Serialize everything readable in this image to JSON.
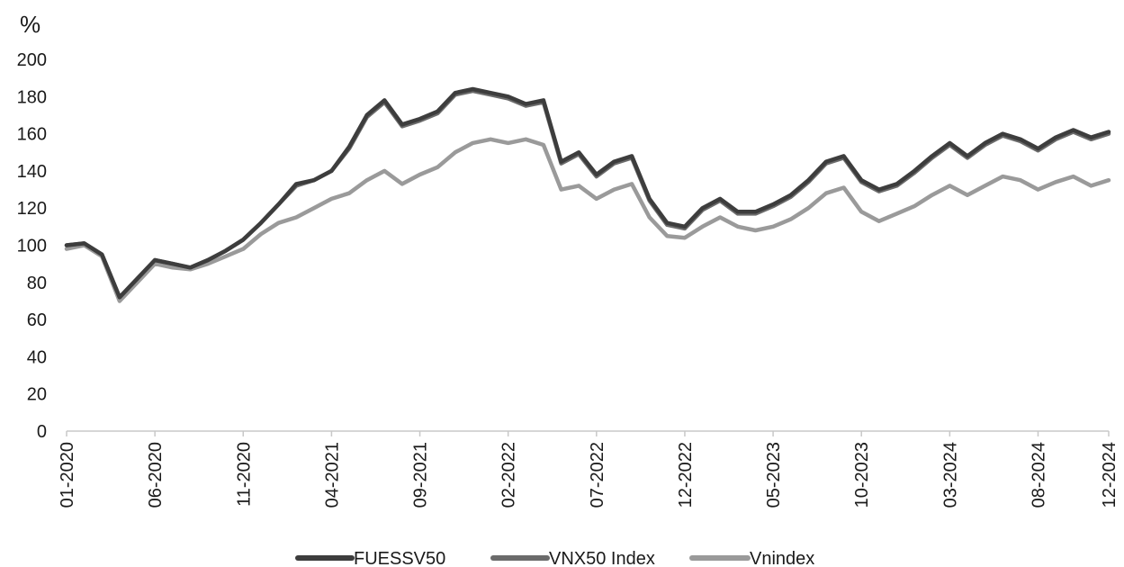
{
  "chart_data": {
    "type": "line",
    "title": "",
    "ylabel": "%",
    "xlabel": "",
    "ylim": [
      0,
      200
    ],
    "y_ticks": [
      0,
      20,
      40,
      60,
      80,
      100,
      120,
      140,
      160,
      180,
      200
    ],
    "x_ticks": [
      "01-2020",
      "06-2020",
      "11-2020",
      "04-2021",
      "09-2021",
      "02-2022",
      "07-2022",
      "12-2022",
      "05-2023",
      "10-2023",
      "03-2024",
      "08-2024",
      "12-2024"
    ],
    "grid": false,
    "legend_position": "bottom",
    "series": [
      {
        "name": "FUESSV50",
        "color": "#3d3d3d",
        "points": [
          [
            "01-2020",
            100
          ],
          [
            "02-2020",
            101
          ],
          [
            "03-2020",
            95
          ],
          [
            "04-2020",
            72
          ],
          [
            "05-2020",
            82
          ],
          [
            "06-2020",
            92
          ],
          [
            "07-2020",
            90
          ],
          [
            "08-2020",
            88
          ],
          [
            "09-2020",
            92
          ],
          [
            "10-2020",
            97
          ],
          [
            "11-2020",
            103
          ],
          [
            "12-2020",
            112
          ],
          [
            "01-2021",
            122
          ],
          [
            "02-2021",
            133
          ],
          [
            "03-2021",
            135
          ],
          [
            "04-2021",
            140
          ],
          [
            "05-2021",
            153
          ],
          [
            "06-2021",
            170
          ],
          [
            "07-2021",
            178
          ],
          [
            "08-2021",
            165
          ],
          [
            "09-2021",
            168
          ],
          [
            "10-2021",
            172
          ],
          [
            "11-2021",
            182
          ],
          [
            "12-2021",
            184
          ],
          [
            "01-2022",
            182
          ],
          [
            "02-2022",
            180
          ],
          [
            "03-2022",
            176
          ],
          [
            "04-2022",
            178
          ],
          [
            "05-2022",
            145
          ],
          [
            "06-2022",
            150
          ],
          [
            "07-2022",
            138
          ],
          [
            "08-2022",
            145
          ],
          [
            "09-2022",
            148
          ],
          [
            "10-2022",
            125
          ],
          [
            "11-2022",
            112
          ],
          [
            "12-2022",
            110
          ],
          [
            "01-2023",
            120
          ],
          [
            "02-2023",
            125
          ],
          [
            "03-2023",
            118
          ],
          [
            "04-2023",
            118
          ],
          [
            "05-2023",
            122
          ],
          [
            "06-2023",
            127
          ],
          [
            "07-2023",
            135
          ],
          [
            "08-2023",
            145
          ],
          [
            "09-2023",
            148
          ],
          [
            "10-2023",
            135
          ],
          [
            "11-2023",
            130
          ],
          [
            "12-2023",
            133
          ],
          [
            "01-2024",
            140
          ],
          [
            "02-2024",
            148
          ],
          [
            "03-2024",
            155
          ],
          [
            "04-2024",
            148
          ],
          [
            "05-2024",
            155
          ],
          [
            "06-2024",
            160
          ],
          [
            "07-2024",
            157
          ],
          [
            "08-2024",
            152
          ],
          [
            "09-2024",
            158
          ],
          [
            "10-2024",
            162
          ],
          [
            "11-2024",
            158
          ],
          [
            "12-2024",
            161
          ]
        ]
      },
      {
        "name": "VNX50 Index",
        "color": "#6b6b6b",
        "points": [
          [
            "01-2020",
            100
          ],
          [
            "02-2020",
            101
          ],
          [
            "03-2020",
            95
          ],
          [
            "04-2020",
            72
          ],
          [
            "05-2020",
            82
          ],
          [
            "06-2020",
            92
          ],
          [
            "07-2020",
            90
          ],
          [
            "08-2020",
            88
          ],
          [
            "09-2020",
            92
          ],
          [
            "10-2020",
            97
          ],
          [
            "11-2020",
            103
          ],
          [
            "12-2020",
            112
          ],
          [
            "01-2021",
            122
          ],
          [
            "02-2021",
            132
          ],
          [
            "03-2021",
            135
          ],
          [
            "04-2021",
            140
          ],
          [
            "05-2021",
            152
          ],
          [
            "06-2021",
            169
          ],
          [
            "07-2021",
            177
          ],
          [
            "08-2021",
            164
          ],
          [
            "09-2021",
            167
          ],
          [
            "10-2021",
            171
          ],
          [
            "11-2021",
            181
          ],
          [
            "12-2021",
            183
          ],
          [
            "01-2022",
            181
          ],
          [
            "02-2022",
            179
          ],
          [
            "03-2022",
            175
          ],
          [
            "04-2022",
            177
          ],
          [
            "05-2022",
            144
          ],
          [
            "06-2022",
            149
          ],
          [
            "07-2022",
            137
          ],
          [
            "08-2022",
            144
          ],
          [
            "09-2022",
            147
          ],
          [
            "10-2022",
            124
          ],
          [
            "11-2022",
            111
          ],
          [
            "12-2022",
            109
          ],
          [
            "01-2023",
            119
          ],
          [
            "02-2023",
            124
          ],
          [
            "03-2023",
            117
          ],
          [
            "04-2023",
            117
          ],
          [
            "05-2023",
            121
          ],
          [
            "06-2023",
            126
          ],
          [
            "07-2023",
            134
          ],
          [
            "08-2023",
            144
          ],
          [
            "09-2023",
            147
          ],
          [
            "10-2023",
            134
          ],
          [
            "11-2023",
            129
          ],
          [
            "12-2023",
            132
          ],
          [
            "01-2024",
            139
          ],
          [
            "02-2024",
            147
          ],
          [
            "03-2024",
            154
          ],
          [
            "04-2024",
            147
          ],
          [
            "05-2024",
            154
          ],
          [
            "06-2024",
            159
          ],
          [
            "07-2024",
            156
          ],
          [
            "08-2024",
            151
          ],
          [
            "09-2024",
            157
          ],
          [
            "10-2024",
            161
          ],
          [
            "11-2024",
            157
          ],
          [
            "12-2024",
            160
          ]
        ]
      },
      {
        "name": "Vnindex",
        "color": "#9a9a9a",
        "points": [
          [
            "01-2020",
            98
          ],
          [
            "02-2020",
            100
          ],
          [
            "03-2020",
            94
          ],
          [
            "04-2020",
            70
          ],
          [
            "05-2020",
            80
          ],
          [
            "06-2020",
            90
          ],
          [
            "07-2020",
            88
          ],
          [
            "08-2020",
            87
          ],
          [
            "09-2020",
            90
          ],
          [
            "10-2020",
            94
          ],
          [
            "11-2020",
            98
          ],
          [
            "12-2020",
            106
          ],
          [
            "01-2021",
            112
          ],
          [
            "02-2021",
            115
          ],
          [
            "03-2021",
            120
          ],
          [
            "04-2021",
            125
          ],
          [
            "05-2021",
            128
          ],
          [
            "06-2021",
            135
          ],
          [
            "07-2021",
            140
          ],
          [
            "08-2021",
            133
          ],
          [
            "09-2021",
            138
          ],
          [
            "10-2021",
            142
          ],
          [
            "11-2021",
            150
          ],
          [
            "12-2021",
            155
          ],
          [
            "01-2022",
            157
          ],
          [
            "02-2022",
            155
          ],
          [
            "03-2022",
            157
          ],
          [
            "04-2022",
            154
          ],
          [
            "05-2022",
            130
          ],
          [
            "06-2022",
            132
          ],
          [
            "07-2022",
            125
          ],
          [
            "08-2022",
            130
          ],
          [
            "09-2022",
            133
          ],
          [
            "10-2022",
            115
          ],
          [
            "11-2022",
            105
          ],
          [
            "12-2022",
            104
          ],
          [
            "01-2023",
            110
          ],
          [
            "02-2023",
            115
          ],
          [
            "03-2023",
            110
          ],
          [
            "04-2023",
            108
          ],
          [
            "05-2023",
            110
          ],
          [
            "06-2023",
            114
          ],
          [
            "07-2023",
            120
          ],
          [
            "08-2023",
            128
          ],
          [
            "09-2023",
            131
          ],
          [
            "10-2023",
            118
          ],
          [
            "11-2023",
            113
          ],
          [
            "12-2023",
            117
          ],
          [
            "01-2024",
            121
          ],
          [
            "02-2024",
            127
          ],
          [
            "03-2024",
            132
          ],
          [
            "04-2024",
            127
          ],
          [
            "05-2024",
            132
          ],
          [
            "06-2024",
            137
          ],
          [
            "07-2024",
            135
          ],
          [
            "08-2024",
            130
          ],
          [
            "09-2024",
            134
          ],
          [
            "10-2024",
            137
          ],
          [
            "11-2024",
            132
          ],
          [
            "12-2024",
            135
          ]
        ]
      }
    ]
  }
}
